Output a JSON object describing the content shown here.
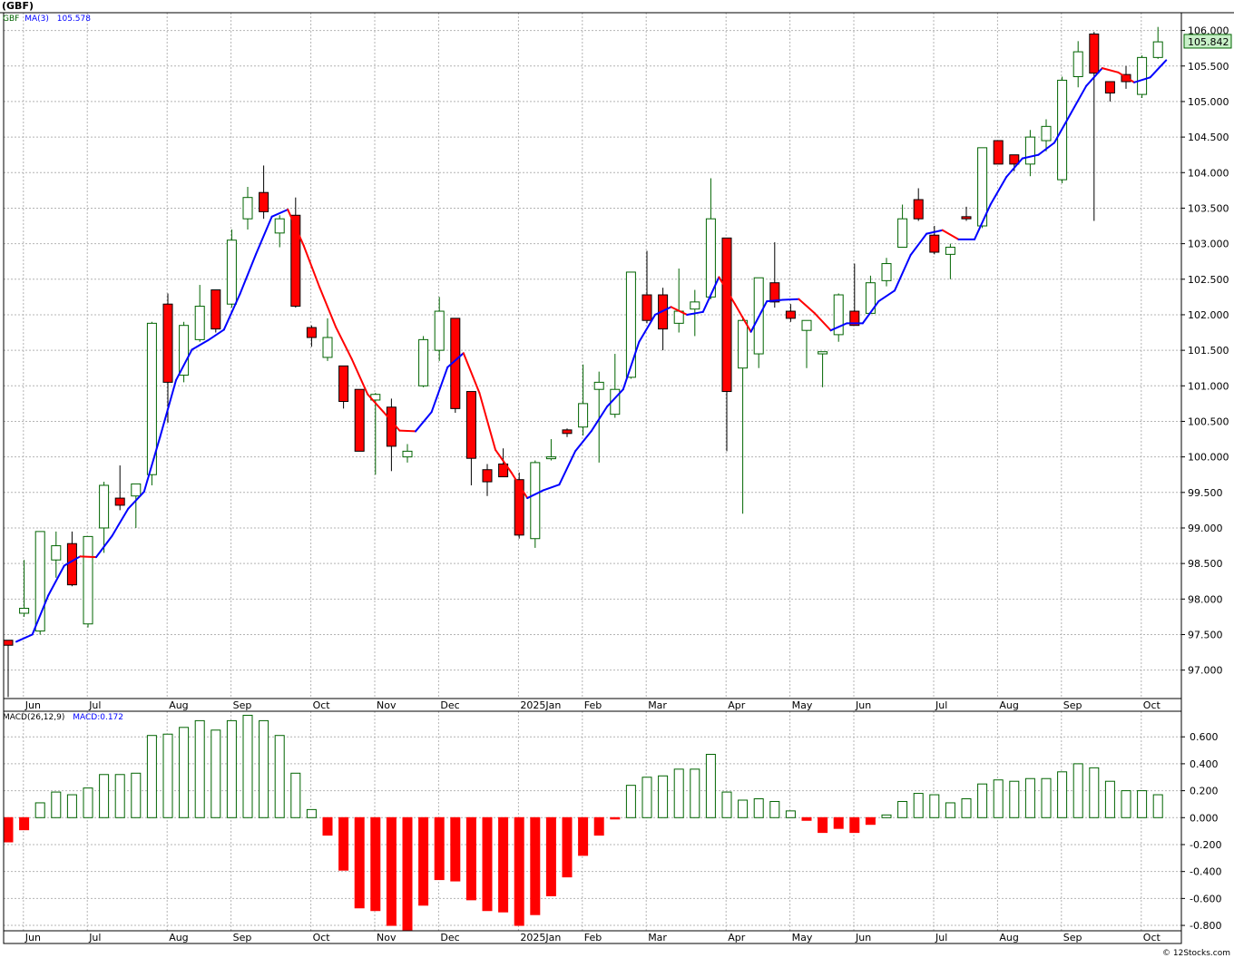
{
  "title": "(GBF)",
  "credit": "© 12Stocks.com",
  "colors": {
    "up": "#006400",
    "down": "#ff0000",
    "ma_up": "#0000ff",
    "ma_down": "#ff0000",
    "grid": "#b4b4b4",
    "price_tag_bg": "#c8f0c8"
  },
  "price_panel": {
    "legend": [
      {
        "text": "GBF",
        "color": "#006400"
      },
      {
        "text": "MA(3)",
        "color": "#0000ff"
      },
      {
        "text": "105.578",
        "color": "#0000ff"
      }
    ],
    "last_price": "105.842"
  },
  "macd_panel": {
    "legend": [
      {
        "text": "MACD(26,12,9)",
        "color": "#000000"
      },
      {
        "text": "MACD:0.172",
        "color": "#0000ff"
      }
    ]
  },
  "chart_data": [
    {
      "type": "candlestick",
      "title": "(GBF)",
      "ylim": [
        96.6,
        106.25
      ],
      "yticks": [
        "97.000",
        "97.500",
        "98.000",
        "98.500",
        "99.000",
        "99.500",
        "100.000",
        "100.500",
        "101.000",
        "101.500",
        "102.000",
        "102.500",
        "103.000",
        "103.500",
        "104.000",
        "104.500",
        "105.000",
        "105.500",
        "106.000"
      ],
      "x_labels": [
        "Jun",
        "Jul",
        "Aug",
        "Sep",
        "Oct",
        "Nov",
        "Dec",
        "2025Jan",
        "Feb",
        "Mar",
        "Apr",
        "May",
        "Jun",
        "Jul",
        "Aug",
        "Sep",
        "Oct"
      ],
      "x_label_week_index": [
        1,
        5,
        10,
        14,
        19,
        23,
        27,
        32,
        36,
        40,
        45,
        49,
        53,
        58,
        62,
        66,
        71
      ],
      "grid": true,
      "candles": [
        [
          97.42,
          97.42,
          96.62,
          97.35
        ],
        [
          97.8,
          98.55,
          97.75,
          97.87
        ],
        [
          97.55,
          98.95,
          97.5,
          98.95
        ],
        [
          98.55,
          98.95,
          98.3,
          98.75
        ],
        [
          98.78,
          98.95,
          98.18,
          98.2
        ],
        [
          97.65,
          98.88,
          97.6,
          98.88
        ],
        [
          99.0,
          99.65,
          98.65,
          99.6
        ],
        [
          99.42,
          99.88,
          99.25,
          99.32
        ],
        [
          99.45,
          99.62,
          99.0,
          99.62
        ],
        [
          99.75,
          101.9,
          99.6,
          101.88
        ],
        [
          102.15,
          102.3,
          100.48,
          101.05
        ],
        [
          101.15,
          101.9,
          101.05,
          101.85
        ],
        [
          101.65,
          102.42,
          101.62,
          102.12
        ],
        [
          102.35,
          102.35,
          101.75,
          101.8
        ],
        [
          102.15,
          103.2,
          102.1,
          103.05
        ],
        [
          103.35,
          103.8,
          103.2,
          103.65
        ],
        [
          103.72,
          104.1,
          103.35,
          103.45
        ],
        [
          103.15,
          103.4,
          102.95,
          103.35
        ],
        [
          103.4,
          103.65,
          102.1,
          102.12
        ],
        [
          101.82,
          101.85,
          101.55,
          101.68
        ],
        [
          101.4,
          101.95,
          101.35,
          101.68
        ],
        [
          101.28,
          101.28,
          100.68,
          100.78
        ],
        [
          100.95,
          100.95,
          100.08,
          100.08
        ],
        [
          100.8,
          100.9,
          99.75,
          100.88
        ],
        [
          100.7,
          100.82,
          99.8,
          100.15
        ],
        [
          100.0,
          100.18,
          99.92,
          100.08
        ],
        [
          101.0,
          101.7,
          100.98,
          101.65
        ],
        [
          101.5,
          102.25,
          101.35,
          102.05
        ],
        [
          101.95,
          101.95,
          100.62,
          100.68
        ],
        [
          100.92,
          100.92,
          99.6,
          99.98
        ],
        [
          99.82,
          99.9,
          99.45,
          99.65
        ],
        [
          99.9,
          100.12,
          99.72,
          99.72
        ],
        [
          99.68,
          99.78,
          98.85,
          98.9
        ],
        [
          98.85,
          99.95,
          98.72,
          99.92
        ],
        [
          99.98,
          100.25,
          99.95,
          100.0
        ],
        [
          100.38,
          100.4,
          100.28,
          100.33
        ],
        [
          100.42,
          101.3,
          100.3,
          100.75
        ],
        [
          100.95,
          101.2,
          99.92,
          101.05
        ],
        [
          100.6,
          101.45,
          100.55,
          100.95
        ],
        [
          101.12,
          102.6,
          101.1,
          102.6
        ],
        [
          102.28,
          102.9,
          101.88,
          101.92
        ],
        [
          102.28,
          102.38,
          101.5,
          101.8
        ],
        [
          101.88,
          102.65,
          101.75,
          102.05
        ],
        [
          102.08,
          102.35,
          101.7,
          102.18
        ],
        [
          102.25,
          103.92,
          102.22,
          103.35
        ],
        [
          103.08,
          103.08,
          100.08,
          100.92
        ],
        [
          101.25,
          101.98,
          99.2,
          101.92
        ],
        [
          101.45,
          102.52,
          101.25,
          102.52
        ],
        [
          102.45,
          103.02,
          102.1,
          102.18
        ],
        [
          102.05,
          102.15,
          101.9,
          101.95
        ],
        [
          101.78,
          101.92,
          101.25,
          101.92
        ],
        [
          101.45,
          101.45,
          100.98,
          101.48
        ],
        [
          101.72,
          102.3,
          101.62,
          102.28
        ],
        [
          102.05,
          102.72,
          101.85,
          101.85
        ],
        [
          102.02,
          102.55,
          102.02,
          102.45
        ],
        [
          102.48,
          102.8,
          102.4,
          102.72
        ],
        [
          102.95,
          103.55,
          102.95,
          103.35
        ],
        [
          103.62,
          103.78,
          103.32,
          103.35
        ],
        [
          103.12,
          103.25,
          102.85,
          102.88
        ],
        [
          102.85,
          103.0,
          102.5,
          102.95
        ],
        [
          103.38,
          103.52,
          103.32,
          103.35
        ],
        [
          103.25,
          104.35,
          103.22,
          104.35
        ],
        [
          104.45,
          104.45,
          104.12,
          104.12
        ],
        [
          104.25,
          104.25,
          104.02,
          104.12
        ],
        [
          104.12,
          104.6,
          103.95,
          104.5
        ],
        [
          104.45,
          104.75,
          104.3,
          104.65
        ],
        [
          103.9,
          105.35,
          103.85,
          105.3
        ],
        [
          105.35,
          105.85,
          105.2,
          105.7
        ],
        [
          105.95,
          105.98,
          103.32,
          105.4
        ],
        [
          105.28,
          105.28,
          105.0,
          105.12
        ],
        [
          105.38,
          105.5,
          105.18,
          105.28
        ],
        [
          105.1,
          105.65,
          105.05,
          105.62
        ],
        [
          105.62,
          106.05,
          105.6,
          105.84
        ]
      ],
      "ma3": [
        97.4,
        97.5,
        98.05,
        98.47,
        98.6,
        98.59,
        98.89,
        99.27,
        99.51,
        100.28,
        101.08,
        101.51,
        101.64,
        101.79,
        102.29,
        102.85,
        103.38,
        103.48,
        102.97,
        102.38,
        101.83,
        101.38,
        100.88,
        100.63,
        100.37,
        100.36,
        100.63,
        101.26,
        101.46,
        100.9,
        100.1,
        99.78,
        99.42,
        99.53,
        99.61,
        100.08,
        100.36,
        100.71,
        100.95,
        101.62,
        102.0,
        102.11,
        102.0,
        102.04,
        102.53,
        102.15,
        101.76,
        102.19,
        102.21,
        102.22,
        102.02,
        101.78,
        101.88,
        101.88,
        102.19,
        102.34,
        102.84,
        103.14,
        103.19,
        103.06,
        103.06,
        103.55,
        103.94,
        104.2,
        104.25,
        104.42,
        104.82,
        105.22,
        105.47,
        105.41,
        105.27,
        105.34,
        105.58
      ]
    },
    {
      "type": "bar",
      "title": "MACD(26,12,9)",
      "ylim": [
        -0.84,
        0.79
      ],
      "yticks": [
        "0.600",
        "0.400",
        "0.200",
        "0.000",
        "-0.200",
        "-0.400",
        "-0.600",
        "-0.800"
      ],
      "x_labels": [
        "Jun",
        "Jul",
        "Aug",
        "Sep",
        "Oct",
        "Nov",
        "Dec",
        "2025Jan",
        "Feb",
        "Mar",
        "Apr",
        "May",
        "Jun",
        "Jul",
        "Aug",
        "Sep",
        "Oct"
      ],
      "values": [
        -0.18,
        -0.09,
        0.11,
        0.19,
        0.17,
        0.22,
        0.32,
        0.32,
        0.33,
        0.61,
        0.62,
        0.67,
        0.72,
        0.65,
        0.72,
        0.76,
        0.72,
        0.61,
        0.33,
        0.06,
        -0.13,
        -0.39,
        -0.67,
        -0.69,
        -0.8,
        -0.84,
        -0.65,
        -0.46,
        -0.47,
        -0.61,
        -0.69,
        -0.7,
        -0.8,
        -0.72,
        -0.58,
        -0.44,
        -0.28,
        -0.13,
        -0.01,
        0.24,
        0.3,
        0.31,
        0.36,
        0.36,
        0.47,
        0.19,
        0.13,
        0.14,
        0.12,
        0.05,
        -0.02,
        -0.11,
        -0.08,
        -0.11,
        -0.05,
        0.02,
        0.12,
        0.18,
        0.17,
        0.11,
        0.14,
        0.25,
        0.28,
        0.27,
        0.29,
        0.29,
        0.34,
        0.4,
        0.37,
        0.27,
        0.2,
        0.2,
        0.17
      ]
    }
  ]
}
